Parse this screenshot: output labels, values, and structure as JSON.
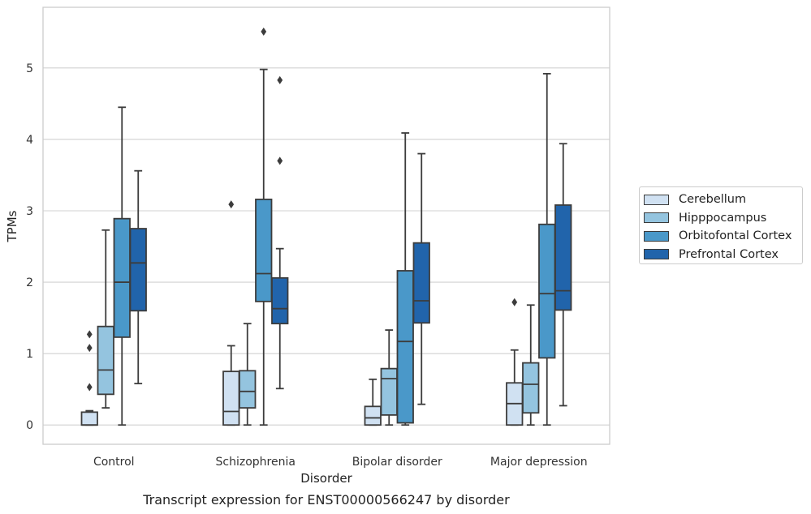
{
  "chart_data": {
    "type": "boxplot",
    "title": "Transcript expression for ENST00000566247 by disorder",
    "xlabel": "Disorder",
    "ylabel": "TPMs",
    "ylim": [
      -0.27,
      5.85
    ],
    "yticks": [
      0,
      1,
      2,
      3,
      4,
      5
    ],
    "grid": true,
    "legend_position": "right",
    "categories": [
      "Control",
      "Schizophrenia",
      "Bipolar disorder",
      "Major depression"
    ],
    "series": [
      {
        "name": "Cerebellum",
        "color": "#d0e1f2",
        "boxes": [
          {
            "whislo": 0,
            "q1": 0,
            "med": 0,
            "q3": 0.18,
            "whishi": 0.2,
            "fliers": [
              0.53,
              1.08,
              1.27
            ]
          },
          {
            "whislo": 0,
            "q1": 0,
            "med": 0.19,
            "q3": 0.75,
            "whishi": 1.11,
            "fliers": [
              3.09
            ]
          },
          {
            "whislo": 0,
            "q1": 0,
            "med": 0.1,
            "q3": 0.26,
            "whishi": 0.64,
            "fliers": []
          },
          {
            "whislo": 0,
            "q1": 0,
            "med": 0.3,
            "q3": 0.59,
            "whishi": 1.05,
            "fliers": [
              1.72
            ]
          }
        ]
      },
      {
        "name": "Hipppocampus",
        "color": "#94c4df",
        "boxes": [
          {
            "whislo": 0.24,
            "q1": 0.43,
            "med": 0.77,
            "q3": 1.38,
            "whishi": 2.73,
            "fliers": []
          },
          {
            "whislo": 0,
            "q1": 0.24,
            "med": 0.47,
            "q3": 0.76,
            "whishi": 1.42,
            "fliers": []
          },
          {
            "whislo": 0,
            "q1": 0.14,
            "med": 0.65,
            "q3": 0.79,
            "whishi": 1.33,
            "fliers": []
          },
          {
            "whislo": 0,
            "q1": 0.17,
            "med": 0.57,
            "q3": 0.87,
            "whishi": 1.68,
            "fliers": []
          }
        ]
      },
      {
        "name": "Orbitofontal Cortex",
        "color": "#4a98c9",
        "boxes": [
          {
            "whislo": 0,
            "q1": 1.23,
            "med": 2.0,
            "q3": 2.89,
            "whishi": 4.45,
            "fliers": []
          },
          {
            "whislo": 0,
            "q1": 1.73,
            "med": 2.12,
            "q3": 3.16,
            "whishi": 4.98,
            "fliers": [
              5.51
            ]
          },
          {
            "whislo": 0,
            "q1": 0.03,
            "med": 1.17,
            "q3": 2.16,
            "whishi": 4.09,
            "fliers": []
          },
          {
            "whislo": 0,
            "q1": 0.94,
            "med": 1.84,
            "q3": 2.81,
            "whishi": 4.92,
            "fliers": []
          }
        ]
      },
      {
        "name": "Prefrontal Cortex",
        "color": "#2164ab",
        "boxes": [
          {
            "whislo": 0.58,
            "q1": 1.6,
            "med": 2.27,
            "q3": 2.75,
            "whishi": 3.56,
            "fliers": []
          },
          {
            "whislo": 0.51,
            "q1": 1.42,
            "med": 1.63,
            "q3": 2.06,
            "whishi": 2.47,
            "fliers": [
              3.7,
              4.83
            ]
          },
          {
            "whislo": 0.29,
            "q1": 1.43,
            "med": 1.74,
            "q3": 2.55,
            "whishi": 3.8,
            "fliers": []
          },
          {
            "whislo": 0.27,
            "q1": 1.61,
            "med": 1.88,
            "q3": 3.08,
            "whishi": 3.94,
            "fliers": []
          }
        ]
      }
    ]
  }
}
